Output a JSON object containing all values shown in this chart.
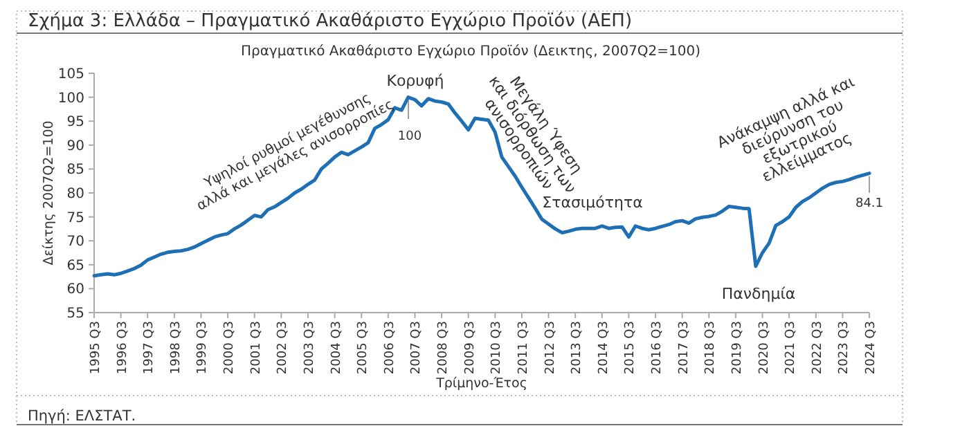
{
  "chart_data": {
    "type": "line",
    "title": "Σχήμα 3: Ελλάδα – Πραγματικό Ακαθάριστο Εγχώριο Προϊόν (ΑΕΠ)",
    "subtitle": "Πραγματικό Ακαθάριστο Εγχώριο Προϊόν (Δεικτης, 2007Q2=100)",
    "xlabel": "Τρίμηνο-Έτος",
    "ylabel": "Δείκτης 2007Q2=100",
    "categories": [
      "1995 Q3",
      null,
      null,
      null,
      "1996 Q3",
      null,
      null,
      null,
      "1997 Q3",
      null,
      null,
      null,
      "1998 Q3",
      null,
      null,
      null,
      "1999 Q3",
      null,
      null,
      null,
      "2000 Q3",
      null,
      null,
      null,
      "2001 Q3",
      null,
      null,
      null,
      "2002 Q3",
      null,
      null,
      null,
      "2003 Q3",
      null,
      null,
      null,
      "2004 Q3",
      null,
      null,
      null,
      "2005 Q3",
      null,
      null,
      null,
      "2006 Q3",
      null,
      null,
      null,
      "2007 Q3",
      null,
      null,
      null,
      "2008 Q3",
      null,
      null,
      null,
      "2009 Q3",
      null,
      null,
      null,
      "2010 Q3",
      null,
      null,
      null,
      "2011 Q3",
      null,
      null,
      null,
      "2012 Q3",
      null,
      null,
      null,
      "2013 Q3",
      null,
      null,
      null,
      "2014 Q3",
      null,
      null,
      null,
      "2015 Q3",
      null,
      null,
      null,
      "2016 Q3",
      null,
      null,
      null,
      "2017 Q3",
      null,
      null,
      null,
      "2018 Q3",
      null,
      null,
      null,
      "2019 Q3",
      null,
      null,
      null,
      "2020 Q3",
      null,
      null,
      null,
      "2021 Q3",
      null,
      null,
      null,
      "2022 Q3",
      null,
      null,
      null,
      "2023 Q3",
      null,
      null,
      null,
      "2024 Q3"
    ],
    "series": [
      {
        "color": "#1f6fb5",
        "values": [
          62.7,
          62.9,
          63.1,
          62.9,
          63.2,
          63.7,
          64.2,
          64.9,
          66.0,
          66.6,
          67.2,
          67.6,
          67.8,
          67.9,
          68.2,
          68.7,
          69.4,
          70.1,
          70.8,
          71.2,
          71.5,
          72.5,
          73.3,
          74.3,
          75.3,
          75.0,
          76.5,
          77.1,
          78.0,
          78.9,
          80.0,
          80.8,
          81.8,
          82.7,
          85.0,
          86.2,
          87.5,
          88.5,
          88.0,
          88.8,
          89.6,
          90.5,
          93.5,
          94.3,
          95.3,
          97.8,
          97.3,
          100,
          99.5,
          98.2,
          99.7,
          99.2,
          99.0,
          98.6,
          96.7,
          95.0,
          93.2,
          95.6,
          95.4,
          95.2,
          92.7,
          87.5,
          85.5,
          83.5,
          81.2,
          79.0,
          76.8,
          74.5,
          73.5,
          72.5,
          71.7,
          72.0,
          72.4,
          72.6,
          72.6,
          72.6,
          73.1,
          72.6,
          72.8,
          72.9,
          70.8,
          73.1,
          72.6,
          72.3,
          72.6,
          73.0,
          73.4,
          74.0,
          74.2,
          73.7,
          74.6,
          74.9,
          75.1,
          75.4,
          76.2,
          77.2,
          77.0,
          76.8,
          76.7,
          64.7,
          67.5,
          69.5,
          73.2,
          74.0,
          75.0,
          77.0,
          78.2,
          79.0,
          80.0,
          81.0,
          81.8,
          82.2,
          82.4,
          82.8,
          83.3,
          83.7,
          84.1
        ]
      }
    ],
    "ylim": [
      55,
      105
    ],
    "yticks": [
      55,
      60,
      65,
      70,
      75,
      80,
      85,
      90,
      95,
      100,
      105
    ],
    "annotations": [
      "Υψηλοί ρυθμοί μεγέθυνσης\nαλλά και μεγάλες ανισορροπίες",
      "Κορυφή",
      "100",
      "Μεγάλη Ύφεση\nκαι διόρθωση των\nανισορροπιών",
      "Στασιμότητα",
      "Πανδημία",
      "Ανάκαμψη αλλά και\nδιεύρυνση του\nεξωτρικού\nελλείμματος",
      {
        "text": "84.1",
        "x": "2024 Q3",
        "y": 84.1
      },
      "Πηγή: ΕΛΣΤΑΤ."
    ]
  }
}
